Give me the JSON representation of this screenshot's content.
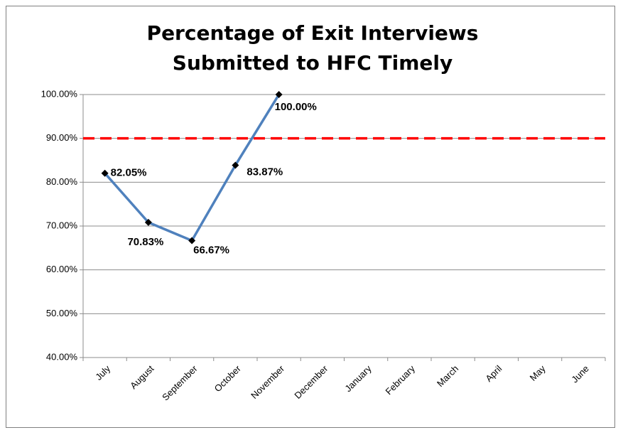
{
  "chart_data": {
    "type": "line",
    "title": "Percentage of Exit Interviews Submitted to HFC Timely",
    "categories": [
      "July",
      "August",
      "September",
      "October",
      "November",
      "December",
      "January",
      "February",
      "March",
      "April",
      "May",
      "June"
    ],
    "series": [
      {
        "color": "#4f81bd",
        "values": [
          82.05,
          70.83,
          66.67,
          83.87,
          100,
          null,
          null,
          null,
          null,
          null,
          null,
          null
        ],
        "value_labels": [
          "82.05%",
          "70.83%",
          "66.67%",
          "83.87%",
          "100.00%",
          null,
          null,
          null,
          null,
          null,
          null,
          null
        ]
      }
    ],
    "reference_line": {
      "value": 90,
      "color": "#ff0000"
    },
    "ylim": [
      40,
      100
    ],
    "yticks": [
      {
        "value": 40,
        "label": "40.00%"
      },
      {
        "value": 50,
        "label": "50.00%"
      },
      {
        "value": 60,
        "label": "60.00%"
      },
      {
        "value": 70,
        "label": "70.00%"
      },
      {
        "value": 80,
        "label": "80.00%"
      },
      {
        "value": 90,
        "label": "90.00%"
      },
      {
        "value": 100,
        "label": "100.00%"
      }
    ],
    "grid": true
  }
}
